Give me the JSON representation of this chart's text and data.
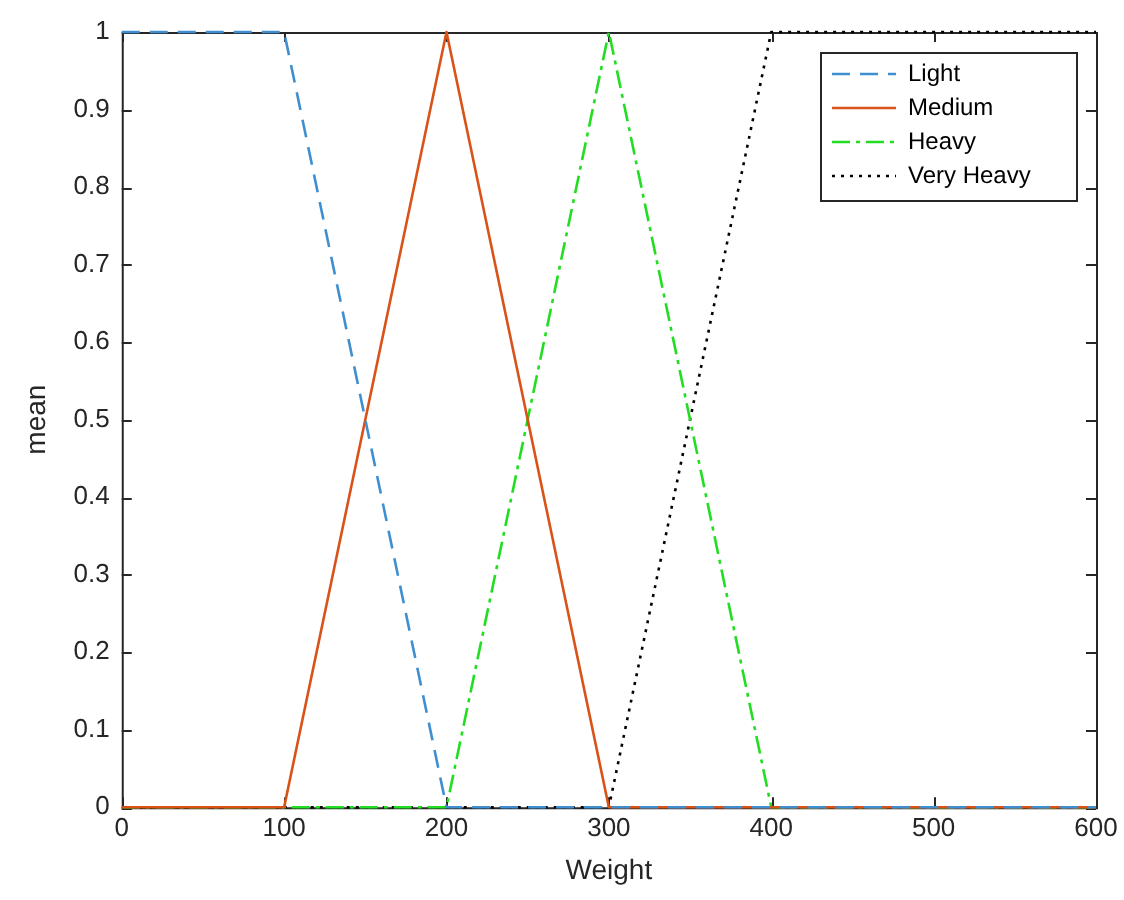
{
  "chart_data": {
    "type": "line",
    "xlabel": "Weight",
    "ylabel": "mean",
    "xlim": [
      0,
      600
    ],
    "ylim": [
      0,
      1
    ],
    "xticks": [
      0,
      100,
      200,
      300,
      400,
      500,
      600
    ],
    "yticks": [
      0,
      0.1,
      0.2,
      0.3,
      0.4,
      0.5,
      0.6,
      0.7,
      0.8,
      0.9,
      1
    ],
    "grid": false,
    "legend": "top right",
    "marker": "none",
    "series": [
      {
        "name": "Light",
        "color": "#3f8fd0",
        "line_style": "dashed",
        "x": [
          0,
          100,
          200,
          600
        ],
        "values": [
          1,
          1,
          0,
          0
        ]
      },
      {
        "name": "Medium",
        "color": "#d95319",
        "line_style": "solid",
        "x": [
          0,
          100,
          200,
          300,
          600
        ],
        "values": [
          0,
          0,
          1,
          0,
          0
        ]
      },
      {
        "name": "Heavy",
        "color": "#22dd22",
        "line_style": "dashdot",
        "x": [
          0,
          200,
          300,
          400,
          600
        ],
        "values": [
          0,
          0,
          1,
          0,
          0
        ]
      },
      {
        "name": "Very Heavy",
        "color": "#000000",
        "line_style": "dotted",
        "x": [
          0,
          300,
          400,
          600
        ],
        "values": [
          0,
          0,
          1,
          1
        ]
      }
    ]
  }
}
